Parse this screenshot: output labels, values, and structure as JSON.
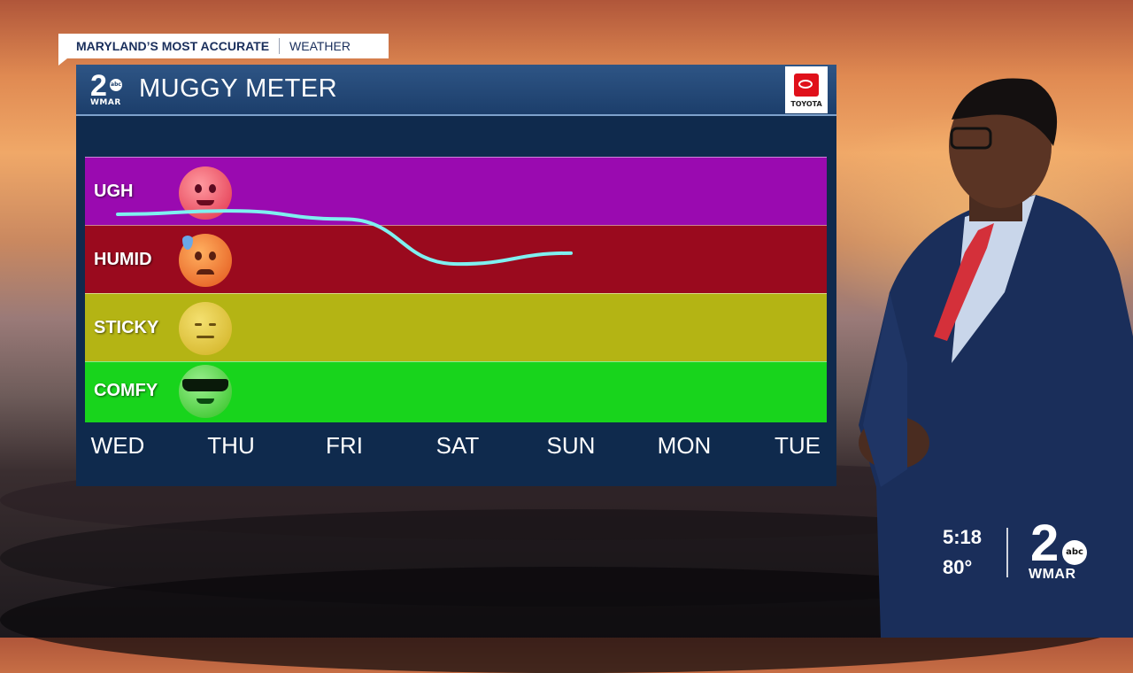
{
  "header": {
    "tagline_strong": "MARYLAND’S MOST ACCURATE",
    "tagline_light": "WEATHER"
  },
  "panel": {
    "title": "MUGGY METER",
    "station_number": "2",
    "station_network": "abc",
    "station_call": "WMAR",
    "sponsor": "TOYOTA"
  },
  "meter": {
    "levels": [
      {
        "label": "UGH",
        "color": "#9a0ab0",
        "emoji": "hot-face-icon"
      },
      {
        "label": "HUMID",
        "color": "#9a0a1e",
        "emoji": "sweat-face-icon"
      },
      {
        "label": "STICKY",
        "color": "#b4b414",
        "emoji": "neutral-face-icon"
      },
      {
        "label": "COMFY",
        "color": "#18d41c",
        "emoji": "cool-face-icon"
      }
    ],
    "days": [
      "WED",
      "THU",
      "FRI",
      "SAT",
      "SUN",
      "MON",
      "TUE"
    ],
    "line_color": "#7ff0f0",
    "trend": [
      {
        "day": "WED",
        "level": 3.65
      },
      {
        "day": "THU",
        "level": 3.7
      },
      {
        "day": "FRI",
        "level": 3.58
      },
      {
        "day": "SAT",
        "level": 2.92
      },
      {
        "day": "SUN",
        "level": 3.08
      }
    ]
  },
  "bug": {
    "time": "5:18",
    "temperature": "80°",
    "logo_number": "2",
    "logo_network": "abc",
    "logo_call": "WMAR"
  }
}
